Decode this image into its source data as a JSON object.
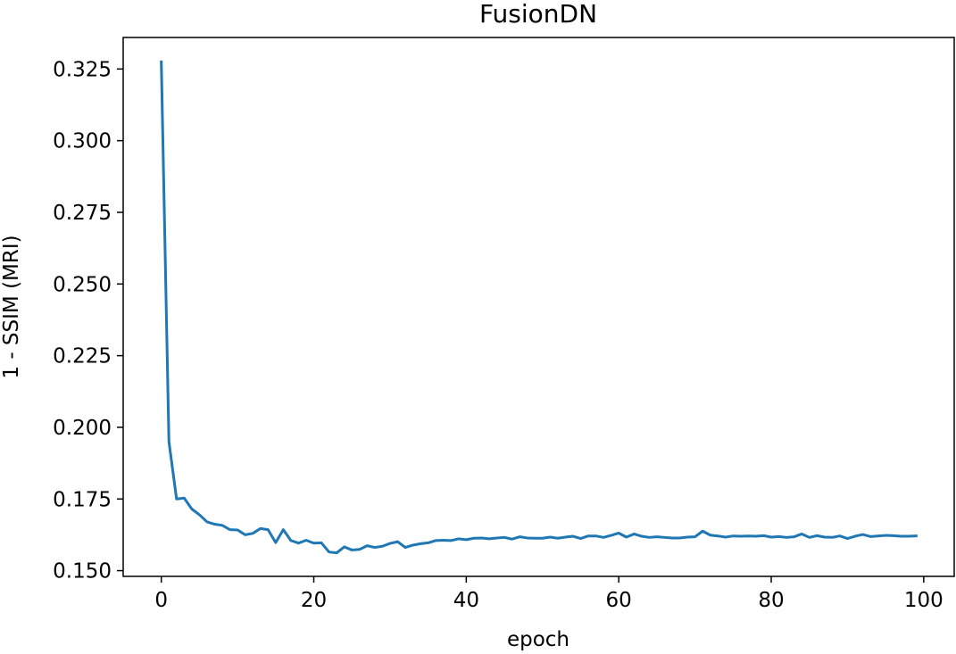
{
  "chart_data": {
    "type": "line",
    "title": "FusionDN",
    "xlabel": "epoch",
    "ylabel": "1 - SSIM (MRI)",
    "xlim": [
      -5,
      104
    ],
    "ylim": [
      0.148,
      0.336
    ],
    "xticks": [
      0,
      20,
      40,
      60,
      80,
      100
    ],
    "xtick_labels": [
      "0",
      "20",
      "40",
      "60",
      "80",
      "100"
    ],
    "yticks": [
      0.15,
      0.175,
      0.2,
      0.225,
      0.25,
      0.275,
      0.3,
      0.325
    ],
    "ytick_labels": [
      "0.150",
      "0.175",
      "0.200",
      "0.225",
      "0.250",
      "0.275",
      "0.300",
      "0.325"
    ],
    "grid": false,
    "series": [
      {
        "color": "#1f77b4",
        "x": [
          0,
          1,
          2,
          3,
          4,
          5,
          6,
          7,
          8,
          9,
          10,
          11,
          12,
          13,
          14,
          15,
          16,
          17,
          18,
          19,
          20,
          21,
          22,
          23,
          24,
          25,
          26,
          27,
          28,
          29,
          30,
          31,
          32,
          33,
          34,
          35,
          36,
          37,
          38,
          39,
          40,
          41,
          42,
          43,
          44,
          45,
          46,
          47,
          48,
          49,
          50,
          51,
          52,
          53,
          54,
          55,
          56,
          57,
          58,
          59,
          60,
          61,
          62,
          63,
          64,
          65,
          66,
          67,
          68,
          69,
          70,
          71,
          72,
          73,
          74,
          75,
          76,
          77,
          78,
          79,
          80,
          81,
          82,
          83,
          84,
          85,
          86,
          87,
          88,
          89,
          90,
          91,
          92,
          93,
          94,
          95,
          96,
          97,
          98,
          99
        ],
        "values": [
          0.3275,
          0.195,
          0.175,
          0.1753,
          0.1715,
          0.1695,
          0.167,
          0.1662,
          0.1658,
          0.1643,
          0.1642,
          0.1625,
          0.163,
          0.1647,
          0.1643,
          0.1598,
          0.1643,
          0.1605,
          0.1596,
          0.1606,
          0.1596,
          0.1597,
          0.1565,
          0.1562,
          0.1583,
          0.1572,
          0.1574,
          0.1587,
          0.1581,
          0.1585,
          0.1595,
          0.1601,
          0.1581,
          0.1589,
          0.1594,
          0.1597,
          0.1605,
          0.1606,
          0.1605,
          0.1611,
          0.1608,
          0.1613,
          0.1614,
          0.1611,
          0.1614,
          0.1616,
          0.161,
          0.1618,
          0.1614,
          0.1613,
          0.1613,
          0.1617,
          0.1613,
          0.1617,
          0.162,
          0.1612,
          0.1621,
          0.1621,
          0.1616,
          0.1623,
          0.1631,
          0.1617,
          0.1628,
          0.162,
          0.1616,
          0.1618,
          0.1616,
          0.1614,
          0.1614,
          0.1617,
          0.1618,
          0.1638,
          0.1624,
          0.1621,
          0.1617,
          0.1621,
          0.162,
          0.1621,
          0.162,
          0.1622,
          0.1617,
          0.1619,
          0.1616,
          0.1618,
          0.1628,
          0.1616,
          0.1622,
          0.1617,
          0.1616,
          0.1621,
          0.1612,
          0.162,
          0.1626,
          0.1619,
          0.1621,
          0.1623,
          0.1622,
          0.162,
          0.162,
          0.1621
        ]
      }
    ]
  }
}
